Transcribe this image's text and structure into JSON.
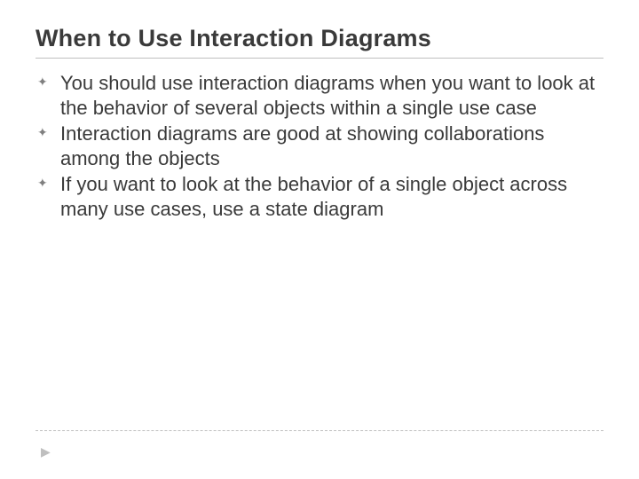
{
  "slide": {
    "title": "When to Use Interaction Diagrams",
    "bullet_glyph": "✦",
    "bullets": [
      "You should use interaction diagrams when you want to look at the behavior of several objects within a single use case",
      "Interaction diagrams are good at showing collaborations among the objects",
      "If you want to look at the behavior of a single object across many use cases, use a state diagram"
    ],
    "footer_arrow": "▶",
    "colors": {
      "text": "#3a3a3a",
      "rule": "#bfbfbf",
      "bullet": "#7f7f7f",
      "background": "#ffffff"
    }
  }
}
